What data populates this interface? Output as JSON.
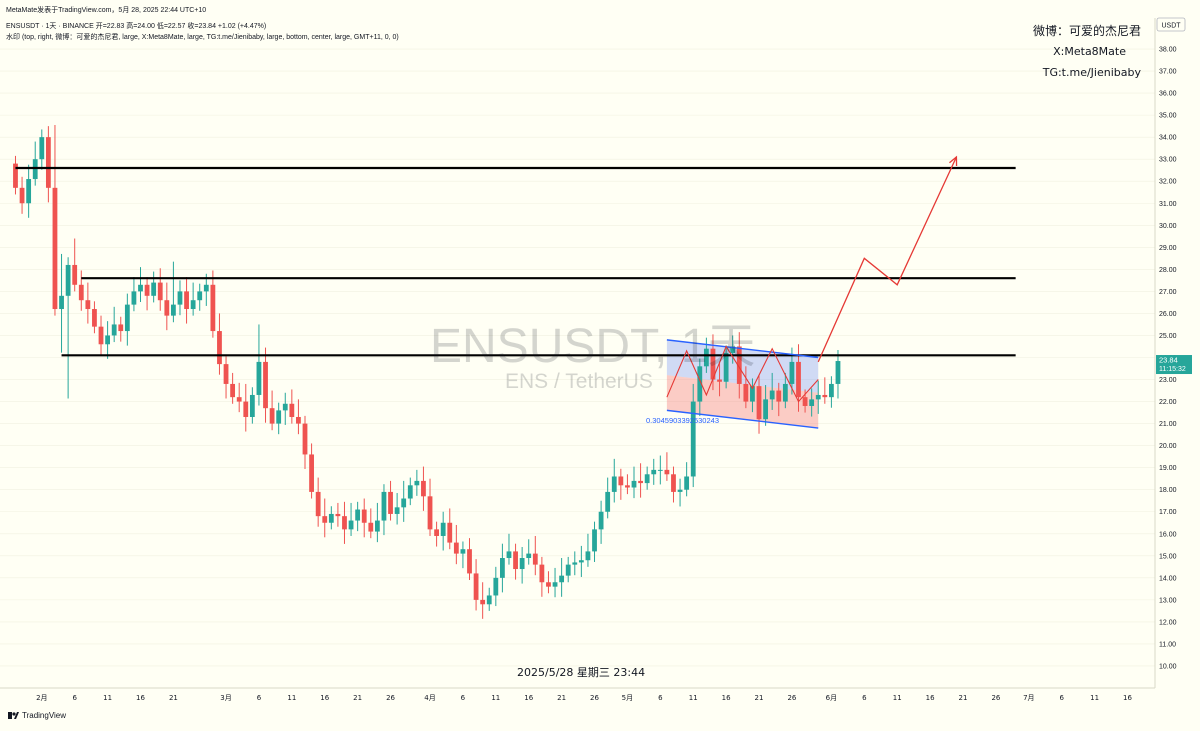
{
  "header": {
    "published": "MetaMate发表于TradingView.com，5月 28, 2025 22:44 UTC+10",
    "ohlc": "ENSUSDT · 1天 · BINANCE  开=22.83  高=24.00  低=22.57  收=23.84  +1.02 (+4.47%)",
    "watermark_info": "水印 (top, right, 微博：可爱的杰尼君, large, X:Meta8Mate, large, TG:t.me/Jienibaby, large, bottom, center, large, GMT+11, 0, 0)"
  },
  "signature": {
    "line1": "微博：可爱的杰尼君",
    "line2": "X:Meta8Mate",
    "line3": "TG:t.me/Jienibaby"
  },
  "watermark": {
    "symbol": "ENSUSDT, 1天",
    "pair": "ENS / TetherUS"
  },
  "date_stamp": "2025/5/28 星期三 23:44",
  "price_axis": {
    "currency": "USDT",
    "current_price": "23.84",
    "countdown": "11:15:32"
  },
  "fib_label": "0.3045903392530243",
  "logo": "TradingView",
  "colors": {
    "bg": "#fffff4",
    "up": "#26a69a",
    "down": "#ef5350",
    "projection": "#e53935",
    "channel": "#2962ff"
  },
  "chart_data": {
    "type": "candlestick",
    "symbol": "ENSUSDT",
    "timeframe": "1D",
    "exchange": "BINANCE",
    "ylim": [
      9.5,
      38.5
    ],
    "y_ticks": [
      "10.00",
      "11.00",
      "12.00",
      "13.00",
      "14.00",
      "15.00",
      "16.00",
      "17.00",
      "18.00",
      "19.00",
      "20.00",
      "21.00",
      "22.00",
      "23.00",
      "24.00",
      "25.00",
      "26.00",
      "27.00",
      "28.00",
      "29.00",
      "30.00",
      "31.00",
      "32.00",
      "33.00",
      "34.00",
      "35.00",
      "36.00",
      "37.00",
      "38.00"
    ],
    "x_ticks": [
      "2月",
      "6",
      "11",
      "16",
      "21",
      "3月",
      "6",
      "11",
      "16",
      "21",
      "26",
      "4月",
      "6",
      "11",
      "16",
      "21",
      "26",
      "5月",
      "6",
      "11",
      "16",
      "21",
      "26",
      "6月",
      "6",
      "11",
      "16",
      "21",
      "26",
      "7月",
      "6",
      "11",
      "16"
    ],
    "x_tick_dates": [
      "2025-02-01",
      "2025-02-06",
      "2025-02-11",
      "2025-02-16",
      "2025-02-21",
      "2025-03-01",
      "2025-03-06",
      "2025-03-11",
      "2025-03-16",
      "2025-03-21",
      "2025-03-26",
      "2025-04-01",
      "2025-04-06",
      "2025-04-11",
      "2025-04-16",
      "2025-04-21",
      "2025-04-26",
      "2025-05-01",
      "2025-05-06",
      "2025-05-11",
      "2025-05-16",
      "2025-05-21",
      "2025-05-26",
      "2025-06-01",
      "2025-06-06",
      "2025-06-11",
      "2025-06-16",
      "2025-06-21",
      "2025-06-26",
      "2025-07-01",
      "2025-07-06",
      "2025-07-11",
      "2025-07-16"
    ],
    "first_date": "2025-01-28",
    "first_close": 32.8,
    "closes": [
      31.7,
      31.0,
      32.1,
      33.0,
      34.0,
      31.7,
      26.2,
      26.8,
      28.2,
      27.3,
      26.6,
      26.2,
      25.4,
      24.6,
      25.0,
      25.5,
      25.2,
      26.4,
      27.0,
      27.3,
      26.8,
      27.4,
      26.6,
      25.9,
      26.4,
      27.0,
      26.2,
      26.6,
      27.0,
      27.3,
      25.2,
      23.7,
      22.8,
      22.2,
      22.0,
      21.3,
      22.3,
      23.8,
      21.7,
      21.0,
      21.6,
      21.9,
      21.3,
      21.0,
      19.6,
      17.9,
      16.8,
      16.5,
      16.9,
      16.8,
      16.2,
      16.6,
      17.1,
      16.5,
      16.1,
      16.6,
      17.9,
      16.9,
      17.2,
      17.6,
      18.2,
      18.4,
      17.7,
      16.2,
      15.9,
      16.5,
      15.6,
      15.1,
      15.3,
      14.2,
      13.0,
      12.8,
      13.2,
      14.0,
      14.9,
      15.2,
      14.4,
      14.9,
      15.1,
      14.6,
      13.8,
      13.6,
      13.8,
      14.1,
      14.6,
      14.7,
      14.8,
      15.2,
      16.2,
      17.0,
      17.9,
      18.6,
      18.2,
      18.1,
      18.4,
      18.3,
      18.7,
      18.9,
      18.9,
      18.7,
      17.9,
      18.0,
      18.6,
      22.0,
      23.6,
      24.4,
      23.0,
      22.9,
      24.2,
      24.5,
      22.8,
      22.0,
      22.7,
      21.2,
      22.1,
      22.5,
      22.0,
      22.8,
      23.8,
      22.2,
      21.8,
      22.1,
      22.3,
      22.2,
      22.8,
      23.84
    ],
    "levels": [
      {
        "price": 32.6,
        "start_date": "2025-01-28",
        "end_date": "2025-06-29"
      },
      {
        "price": 27.6,
        "start_date": "2025-02-07",
        "end_date": "2025-06-29"
      },
      {
        "price": 24.1,
        "start_date": "2025-02-04",
        "end_date": "2025-06-29"
      }
    ],
    "channel": {
      "upper": [
        [
          "2025-05-07",
          24.8
        ],
        [
          "2025-05-30",
          24.0
        ]
      ],
      "lower": [
        [
          "2025-05-07",
          21.6
        ],
        [
          "2025-05-30",
          20.8
        ]
      ]
    },
    "zigzag": [
      [
        "2025-05-07",
        22.2
      ],
      [
        "2025-05-10",
        24.3
      ],
      [
        "2025-05-13",
        22.3
      ],
      [
        "2025-05-16",
        24.5
      ],
      [
        "2025-05-20",
        22.6
      ],
      [
        "2025-05-23",
        24.4
      ],
      [
        "2025-05-27",
        22.0
      ],
      [
        "2025-05-30",
        23.0
      ]
    ],
    "projection": [
      [
        "2025-05-30",
        23.8
      ],
      [
        "2025-06-06",
        28.5
      ],
      [
        "2025-06-11",
        27.3
      ],
      [
        "2025-06-20",
        33.1
      ]
    ]
  }
}
